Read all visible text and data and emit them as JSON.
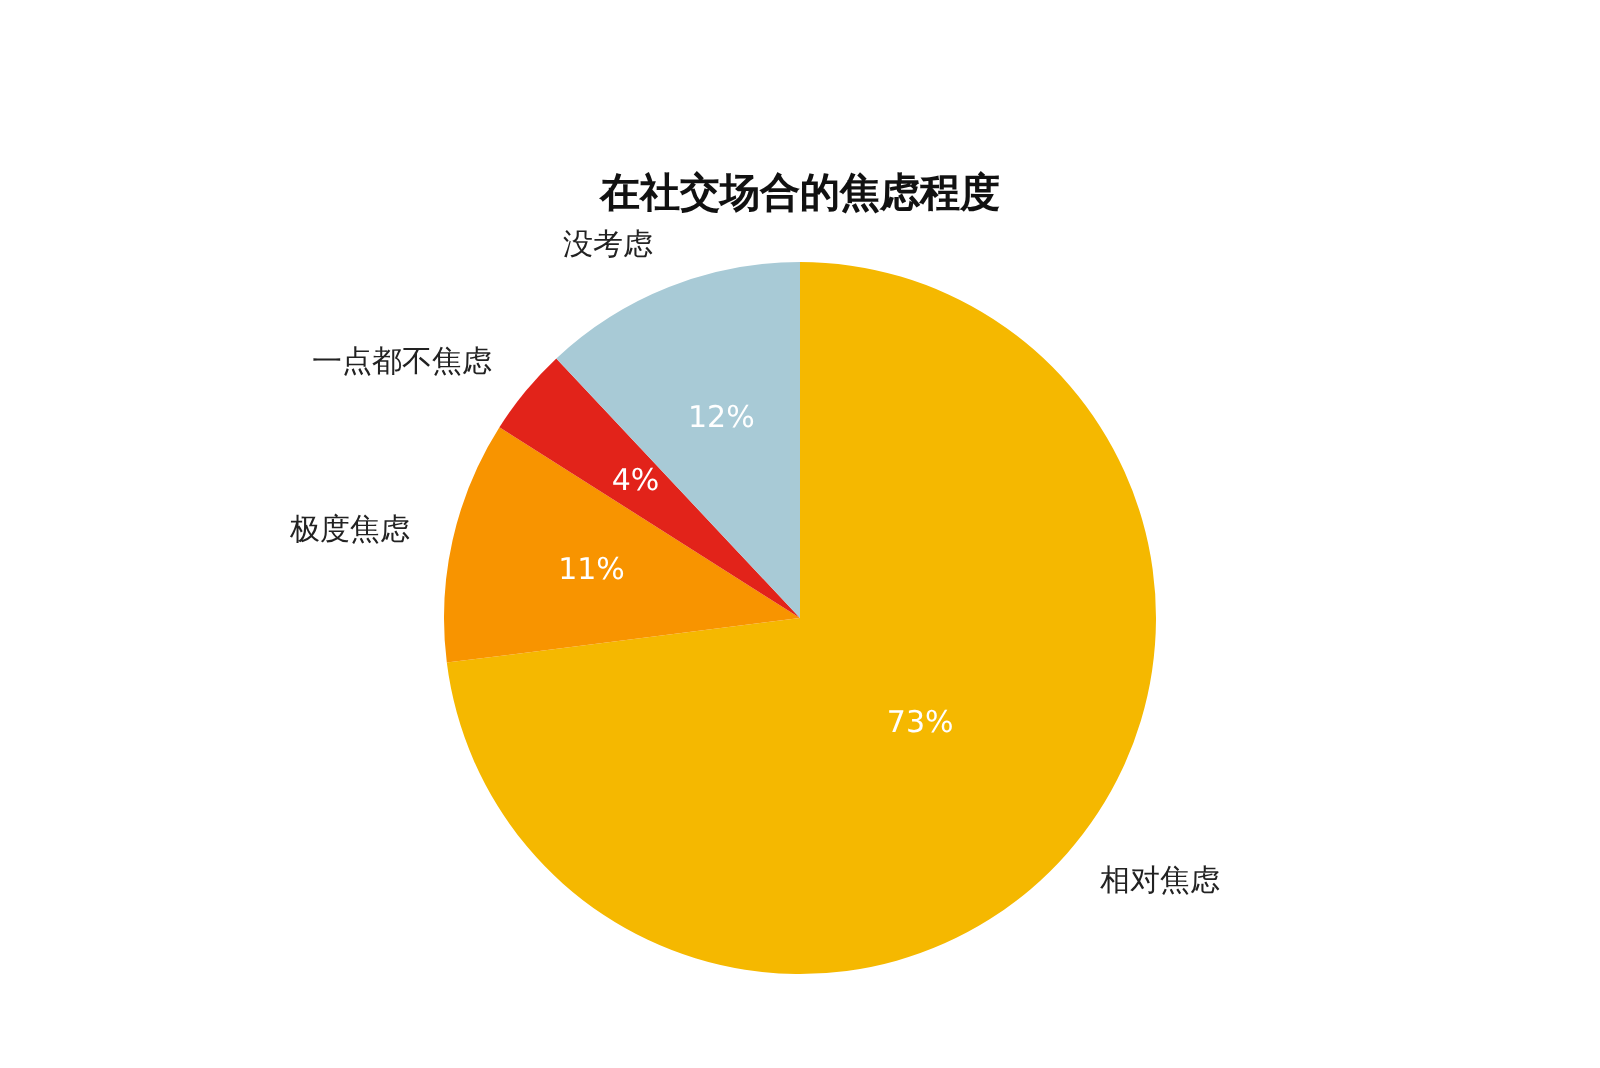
{
  "chart_data": {
    "type": "pie",
    "title": "在社交场合的焦虑程度",
    "categories": [
      "相对焦虑",
      "极度焦虑",
      "一点都不焦虑",
      "没考虑"
    ],
    "values": [
      73,
      11,
      4,
      12
    ],
    "colors": [
      "#f5b800",
      "#f89400",
      "#e2231a",
      "#a8cad6"
    ],
    "value_labels": [
      "73%",
      "11%",
      "4%",
      "12%"
    ],
    "legend": false
  }
}
